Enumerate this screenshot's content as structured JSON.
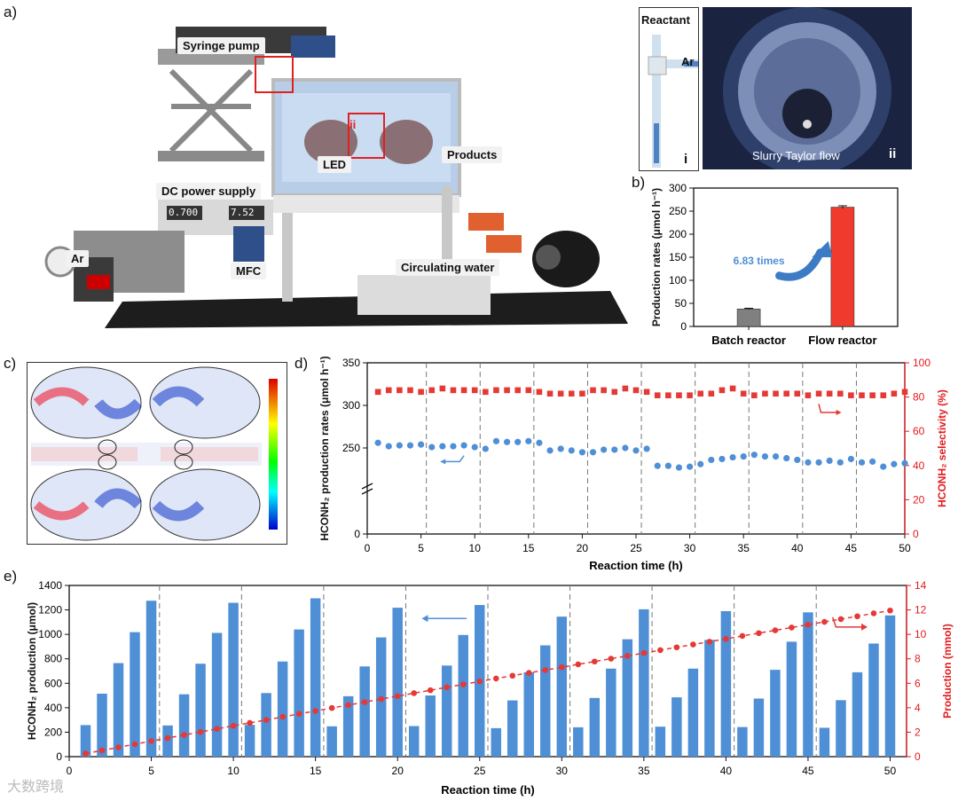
{
  "panels": {
    "a": "a)",
    "b": "b)",
    "c": "c)",
    "d": "d)",
    "e": "e)"
  },
  "photo_a": {
    "labels": {
      "syringe_pump": "Syringe pump",
      "led": "LED",
      "ii_marker": "ii",
      "products": "Products",
      "dc_power": "DC power supply",
      "ar": "Ar",
      "mfc": "MFC",
      "circulating_water": "Circulating water",
      "display1": "0.700",
      "display2": "7.52"
    }
  },
  "insets": {
    "i": {
      "reactant": "Reactant",
      "ar": "Ar",
      "roman": "i"
    },
    "ii": {
      "caption": "Slurry Taylor flow",
      "roman": "ii"
    }
  },
  "panel_c": {
    "description": "velocity field simulation"
  },
  "watermark": "大数跨境",
  "colors": {
    "blue": "#4f8fd6",
    "red": "#e53935",
    "gray": "#808080",
    "axis_red": "#e31a1c",
    "bar_red": "#f03a2e"
  },
  "chart_data": [
    {
      "id": "b",
      "type": "bar",
      "categories": [
        "Batch reactor",
        "Flow reactor"
      ],
      "values": [
        37.9,
        258.6
      ],
      "errors": [
        1.5,
        3
      ],
      "ylabel": "Production rates (μmol h⁻¹)",
      "ylim": [
        0,
        300
      ],
      "yticks": [
        0,
        50,
        100,
        150,
        200,
        250,
        300
      ],
      "annotation": "6.83 times"
    },
    {
      "id": "d",
      "type": "scatter",
      "xlabel": "Reaction time (h)",
      "ylabel": "HCONH₂ production rates (μmol h⁻¹)",
      "ylabel_right": "HCONH₂ selectivity (%)",
      "xlim": [
        0,
        50
      ],
      "xticks": [
        0,
        5,
        10,
        15,
        20,
        25,
        30,
        35,
        40,
        45,
        50
      ],
      "yticks_left": [
        "0",
        "250",
        "300",
        "350"
      ],
      "yticks_right": [
        "0",
        "20",
        "40",
        "60",
        "80",
        "100"
      ],
      "series": [
        {
          "axis": "left",
          "marker": "circle",
          "x": [
            1,
            2,
            3,
            4,
            5,
            6,
            7,
            8,
            9,
            10,
            11,
            12,
            13,
            14,
            15,
            16,
            17,
            18,
            19,
            20,
            21,
            22,
            23,
            24,
            25,
            26,
            27,
            28,
            29,
            30,
            31,
            32,
            33,
            34,
            35,
            36,
            37,
            38,
            39,
            40,
            41,
            42,
            43,
            44,
            45,
            46,
            47,
            48,
            49,
            50
          ],
          "values": [
            256,
            252,
            253,
            253,
            254,
            251,
            252,
            252,
            253,
            251,
            249,
            258,
            257,
            257,
            258,
            256,
            247,
            249,
            247,
            245,
            245,
            248,
            248,
            250,
            247,
            249,
            229,
            229,
            227,
            228,
            231,
            236,
            237,
            239,
            240,
            242,
            240,
            240,
            238,
            236,
            233,
            233,
            235,
            233,
            237,
            233,
            234,
            228,
            231,
            232
          ]
        },
        {
          "axis": "right",
          "marker": "square",
          "x": [
            1,
            2,
            3,
            4,
            5,
            6,
            7,
            8,
            9,
            10,
            11,
            12,
            13,
            14,
            15,
            16,
            17,
            18,
            19,
            20,
            21,
            22,
            23,
            24,
            25,
            26,
            27,
            28,
            29,
            30,
            31,
            32,
            33,
            34,
            35,
            36,
            37,
            38,
            39,
            40,
            41,
            42,
            43,
            44,
            45,
            46,
            47,
            48,
            49,
            50
          ],
          "values": [
            83,
            84,
            84,
            84,
            83,
            84,
            85,
            84,
            84,
            84,
            83,
            84,
            84,
            84,
            84,
            83,
            82,
            82,
            82,
            82,
            84,
            84,
            83,
            85,
            84,
            83,
            81,
            81,
            81,
            81,
            82,
            82,
            84,
            85,
            82,
            81,
            82,
            82,
            82,
            82,
            81,
            82,
            82,
            82,
            81,
            81,
            81,
            81,
            82,
            83
          ]
        }
      ]
    },
    {
      "id": "e",
      "type": "bar",
      "xlabel": "Reaction time (h)",
      "ylabel": "HCONH₂ production (μmol)",
      "ylabel_right": "Production (mmol)",
      "xlim": [
        0,
        51
      ],
      "ylim": [
        0,
        1400
      ],
      "ylim_right": [
        0,
        14
      ],
      "xticks": [
        0,
        5,
        10,
        15,
        20,
        25,
        30,
        35,
        40,
        45,
        50
      ],
      "yticks_left": [
        0,
        200,
        400,
        600,
        800,
        1000,
        1200,
        1400
      ],
      "yticks_right": [
        0,
        2,
        4,
        6,
        8,
        10,
        12,
        14
      ],
      "x": [
        1,
        2,
        3,
        4,
        5,
        6,
        7,
        8,
        9,
        10,
        11,
        12,
        13,
        14,
        15,
        16,
        17,
        18,
        19,
        20,
        21,
        22,
        23,
        24,
        25,
        26,
        27,
        28,
        29,
        30,
        31,
        32,
        33,
        34,
        35,
        36,
        37,
        38,
        39,
        40,
        41,
        42,
        43,
        44,
        45,
        46,
        47,
        48,
        49,
        50
      ],
      "bars": [
        258,
        515,
        765,
        1018,
        1275,
        255,
        510,
        760,
        1012,
        1258,
        260,
        520,
        778,
        1040,
        1295,
        248,
        494,
        738,
        975,
        1218,
        250,
        500,
        745,
        995,
        1240,
        233,
        460,
        690,
        910,
        1145,
        240,
        480,
        720,
        960,
        1205,
        245,
        485,
        720,
        955,
        1190,
        242,
        475,
        710,
        940,
        1180,
        236,
        462,
        690,
        925,
        1155
      ],
      "cumulative": [
        0.25,
        0.51,
        0.76,
        1.02,
        1.27,
        1.52,
        1.77,
        2.02,
        2.27,
        2.52,
        2.76,
        3.0,
        3.25,
        3.5,
        3.74,
        3.98,
        4.22,
        4.46,
        4.71,
        4.95,
        5.19,
        5.43,
        5.67,
        5.91,
        6.15,
        6.39,
        6.62,
        6.85,
        7.08,
        7.31,
        7.55,
        7.78,
        8.01,
        8.24,
        8.47,
        8.71,
        8.94,
        9.17,
        9.4,
        9.63,
        9.87,
        10.1,
        10.33,
        10.56,
        10.79,
        11.02,
        11.25,
        11.48,
        11.72,
        11.95
      ]
    }
  ]
}
